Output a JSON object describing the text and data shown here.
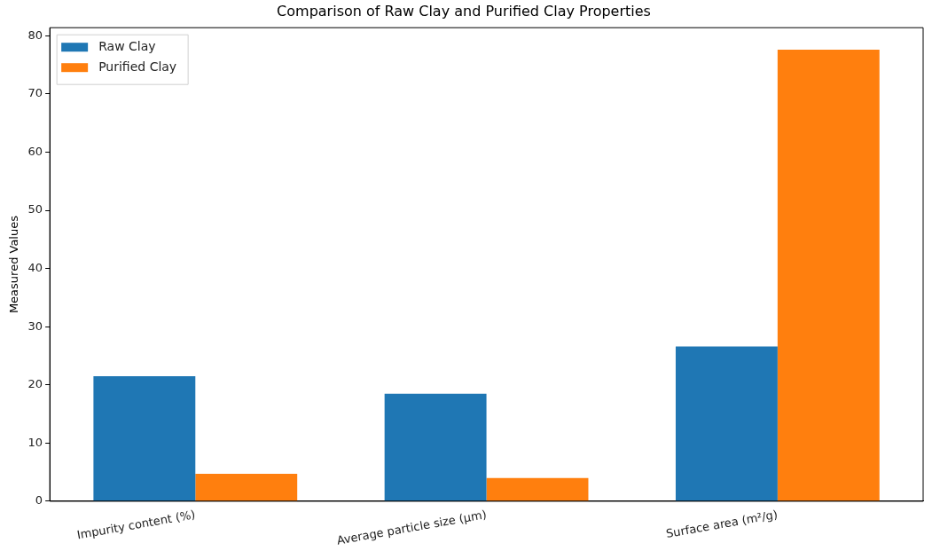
{
  "chart_data": {
    "type": "bar",
    "title": "Comparison of Raw Clay and Purified Clay Properties",
    "ylabel": "Measured Values",
    "categories": [
      "Impurity content (%)",
      "Average particle size (μm)",
      "Surface area (m²/g)"
    ],
    "series": [
      {
        "name": "Raw Clay",
        "color": "#1f77b4",
        "values": [
          21.5,
          18.5,
          26.6
        ]
      },
      {
        "name": "Purified Clay",
        "color": "#ff7f0e",
        "values": [
          4.7,
          4.0,
          77.6
        ]
      }
    ],
    "ylim": [
      0,
      81.4
    ],
    "yticks": [
      0,
      10,
      20,
      30,
      40,
      50,
      60,
      70,
      80
    ],
    "grid": false,
    "legend": "top left"
  }
}
